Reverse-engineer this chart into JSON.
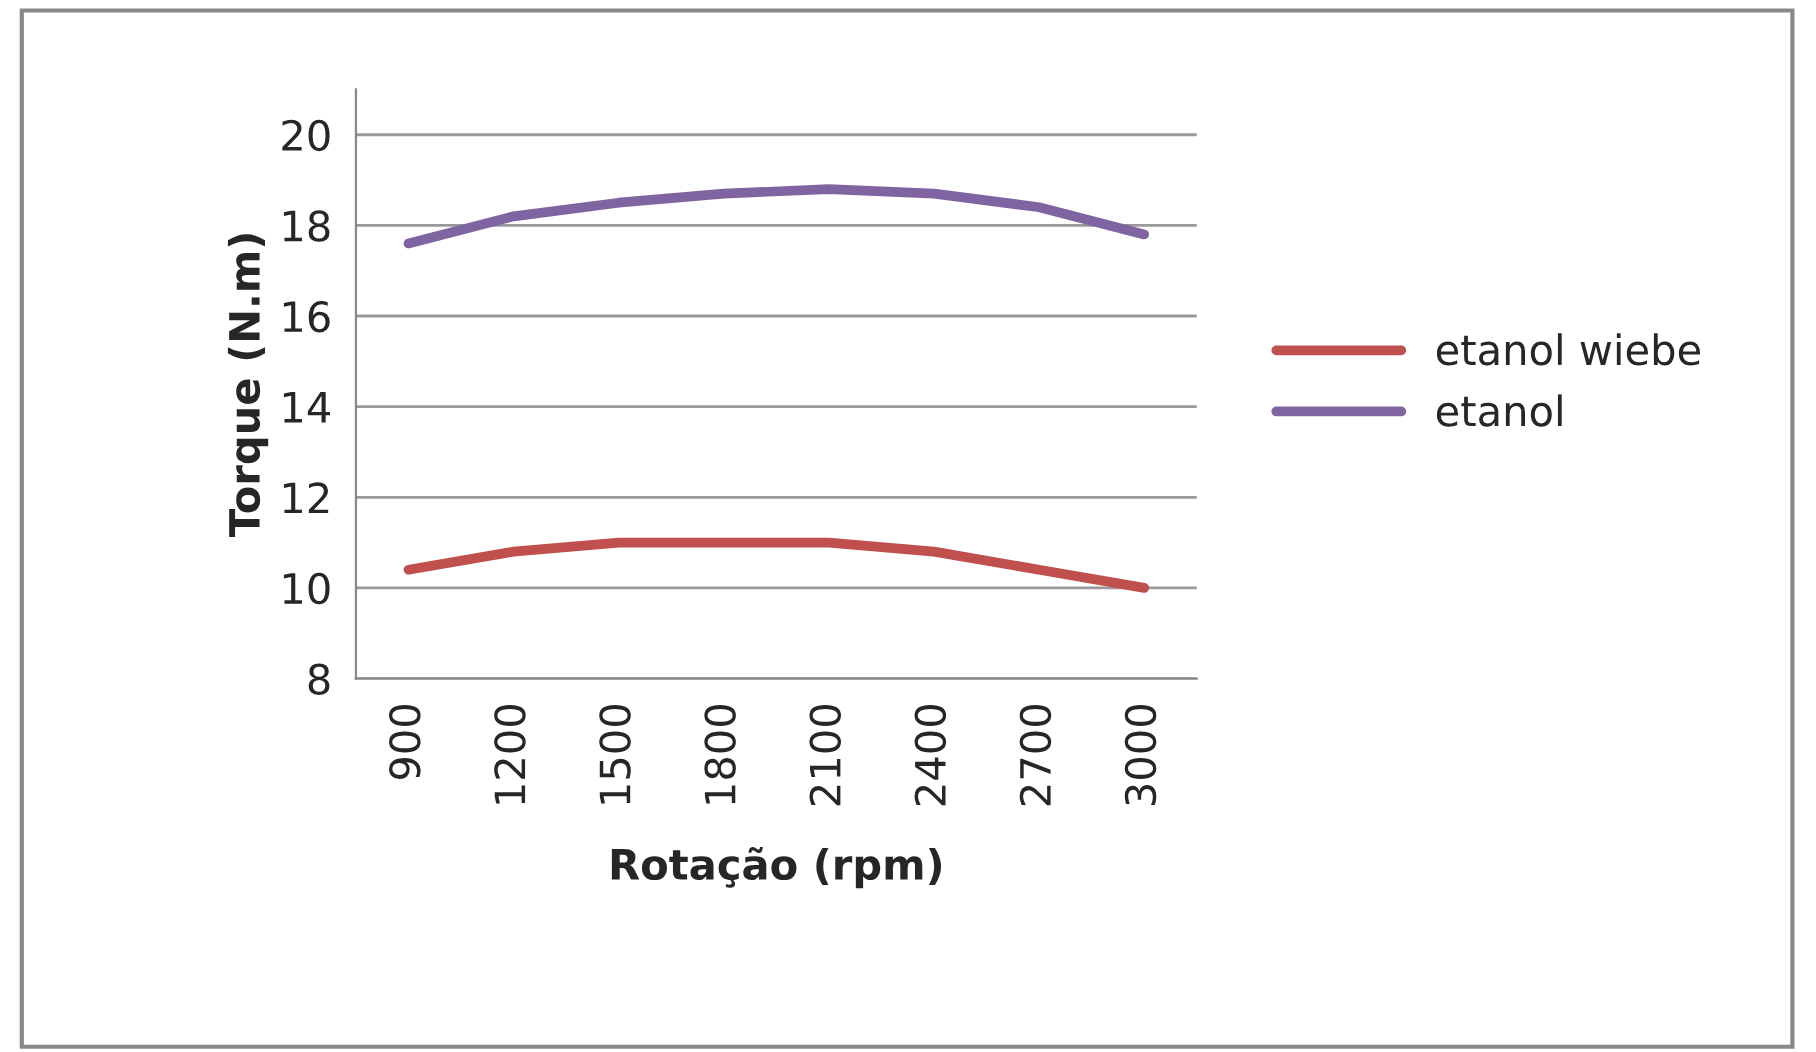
{
  "chart_data": {
    "type": "line",
    "xlabel": "Rotação (rpm)",
    "ylabel": "Torque (N.m)",
    "categories": [
      "900",
      "1200",
      "1500",
      "1800",
      "2100",
      "2400",
      "2700",
      "3000"
    ],
    "series": [
      {
        "name": "etanol wiebe",
        "color": "#c0504d",
        "values": [
          10.4,
          10.8,
          11.0,
          11.0,
          11.0,
          10.8,
          10.4,
          10.0
        ]
      },
      {
        "name": "etanol",
        "color": "#8064a2",
        "values": [
          17.6,
          18.2,
          18.5,
          18.7,
          18.8,
          18.7,
          18.4,
          17.8
        ]
      }
    ],
    "ylim": [
      8,
      21
    ],
    "yticks": [
      8,
      10,
      12,
      14,
      16,
      18,
      20
    ],
    "grid": "y",
    "legend": "right",
    "marker": "none",
    "line_style": "solid"
  }
}
